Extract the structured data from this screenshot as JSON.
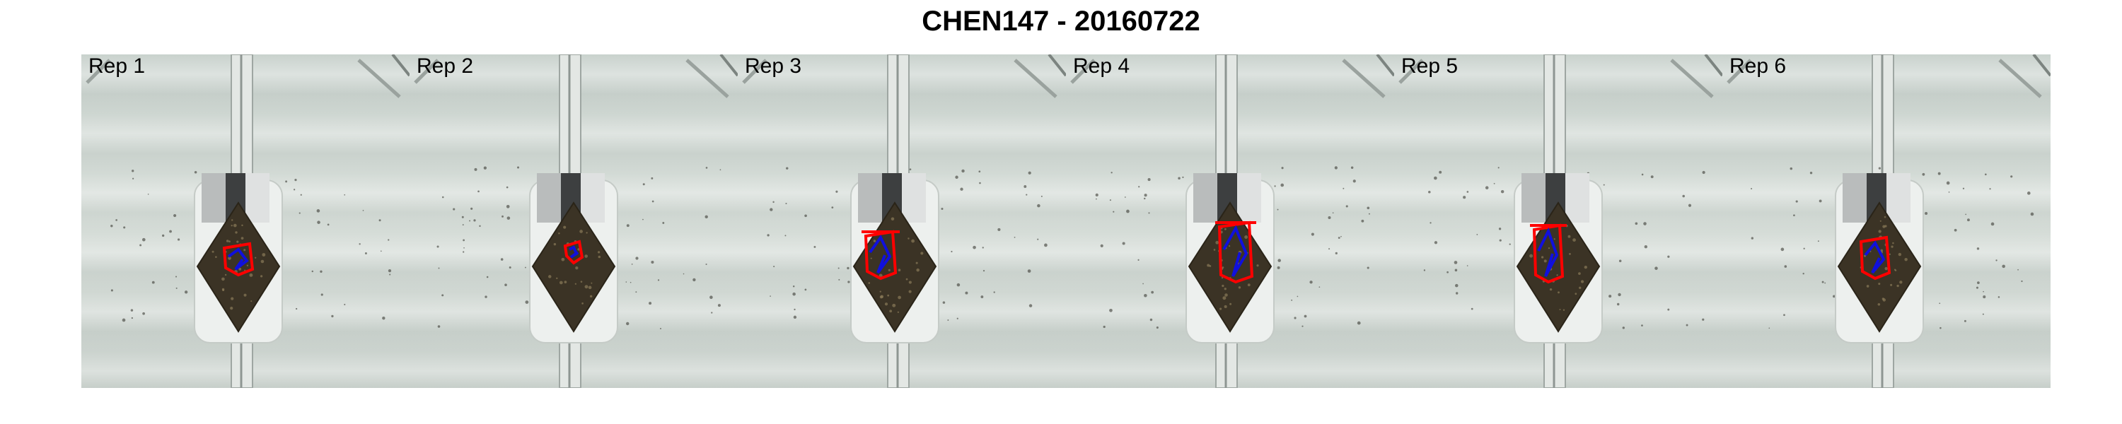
{
  "title": "CHEN147 - 20160722",
  "panels": [
    {
      "label": "Rep 1"
    },
    {
      "label": "Rep 2"
    },
    {
      "label": "Rep 3"
    },
    {
      "label": "Rep 4"
    },
    {
      "label": "Rep 5"
    },
    {
      "label": "Rep 6"
    }
  ],
  "colors": {
    "hull": "#ff0000",
    "skeleton": "#1010dd",
    "soil": "#3b3325",
    "background": "#ffffff"
  }
}
